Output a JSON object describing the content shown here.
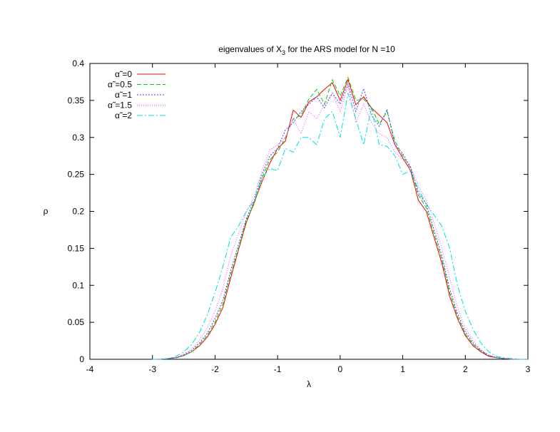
{
  "chart_data": {
    "type": "line",
    "title": {
      "prefix": "eigenvalues of X",
      "sub": "3",
      "suffix": " for the ARS model for N  =10"
    },
    "xlabel": "λ",
    "ylabel": "ρ",
    "xlim": [
      -4,
      3
    ],
    "ylim": [
      0,
      0.4
    ],
    "xticks": [
      -4,
      -3,
      -2,
      -1,
      0,
      1,
      2,
      3
    ],
    "yticks": [
      0,
      0.05,
      0.1,
      0.15,
      0.2,
      0.25,
      0.3,
      0.35,
      0.4
    ],
    "grid": false,
    "legend_position": "top-left",
    "x": [
      -3,
      -2.875,
      -2.75,
      -2.625,
      -2.5,
      -2.375,
      -2.25,
      -2.125,
      -2,
      -1.875,
      -1.75,
      -1.625,
      -1.5,
      -1.375,
      -1.25,
      -1.125,
      -1,
      -0.875,
      -0.75,
      -0.625,
      -0.5,
      -0.375,
      -0.25,
      -0.125,
      0,
      0.125,
      0.25,
      0.375,
      0.5,
      0.625,
      0.75,
      0.875,
      1,
      1.125,
      1.25,
      1.375,
      1.5,
      1.625,
      1.75,
      1.875,
      2,
      2.125,
      2.25,
      2.375,
      2.5,
      2.625,
      2.75,
      2.875,
      3
    ],
    "series": [
      {
        "name": "α̃ =0",
        "color": "#ff0000",
        "dash": "",
        "values": [
          0,
          0,
          0.001,
          0.002,
          0.005,
          0.01,
          0.018,
          0.03,
          0.047,
          0.07,
          0.11,
          0.148,
          0.185,
          0.212,
          0.24,
          0.265,
          0.285,
          0.295,
          0.337,
          0.327,
          0.348,
          0.355,
          0.365,
          0.374,
          0.35,
          0.378,
          0.344,
          0.355,
          0.34,
          0.33,
          0.32,
          0.29,
          0.272,
          0.255,
          0.215,
          0.2,
          0.165,
          0.13,
          0.085,
          0.055,
          0.032,
          0.018,
          0.01,
          0.004,
          0.002,
          0.001,
          0,
          0,
          0
        ]
      },
      {
        "name": "α̃ =0.5",
        "color": "#00cc00",
        "dash": "6,3",
        "values": [
          0,
          0,
          0.001,
          0.002,
          0.005,
          0.01,
          0.02,
          0.032,
          0.05,
          0.075,
          0.115,
          0.15,
          0.188,
          0.21,
          0.245,
          0.27,
          0.28,
          0.3,
          0.325,
          0.33,
          0.352,
          0.365,
          0.345,
          0.378,
          0.356,
          0.381,
          0.35,
          0.352,
          0.34,
          0.318,
          0.335,
          0.295,
          0.275,
          0.258,
          0.222,
          0.205,
          0.17,
          0.135,
          0.09,
          0.058,
          0.034,
          0.02,
          0.011,
          0.005,
          0.002,
          0.001,
          0,
          0,
          0
        ]
      },
      {
        "name": "α̃ =1",
        "color": "#4444ff",
        "dash": "2,2",
        "values": [
          0,
          0,
          0.001,
          0.002,
          0.006,
          0.012,
          0.022,
          0.035,
          0.055,
          0.08,
          0.12,
          0.155,
          0.19,
          0.215,
          0.25,
          0.275,
          0.285,
          0.31,
          0.32,
          0.335,
          0.345,
          0.355,
          0.34,
          0.36,
          0.345,
          0.372,
          0.335,
          0.366,
          0.33,
          0.315,
          0.338,
          0.29,
          0.278,
          0.26,
          0.225,
          0.21,
          0.175,
          0.14,
          0.095,
          0.062,
          0.037,
          0.022,
          0.012,
          0.005,
          0.002,
          0.001,
          0,
          0,
          0
        ]
      },
      {
        "name": "α̃ =1.5",
        "color": "#ff44ff",
        "dash": "1,2",
        "values": [
          0,
          0,
          0.001,
          0.003,
          0.007,
          0.014,
          0.026,
          0.042,
          0.065,
          0.095,
          0.14,
          0.17,
          0.2,
          0.22,
          0.255,
          0.283,
          0.29,
          0.3,
          0.325,
          0.305,
          0.335,
          0.325,
          0.345,
          0.36,
          0.335,
          0.37,
          0.32,
          0.345,
          0.32,
          0.305,
          0.3,
          0.28,
          0.27,
          0.26,
          0.235,
          0.215,
          0.185,
          0.15,
          0.11,
          0.07,
          0.042,
          0.025,
          0.013,
          0.006,
          0.003,
          0.001,
          0,
          0,
          0
        ]
      },
      {
        "name": "α̃ =2",
        "color": "#00dddd",
        "dash": "8,3,2,3",
        "values": [
          0,
          0,
          0.001,
          0.004,
          0.01,
          0.02,
          0.036,
          0.06,
          0.09,
          0.125,
          0.165,
          0.18,
          0.2,
          0.215,
          0.245,
          0.258,
          0.255,
          0.285,
          0.28,
          0.3,
          0.3,
          0.29,
          0.325,
          0.335,
          0.3,
          0.36,
          0.325,
          0.29,
          0.34,
          0.29,
          0.288,
          0.275,
          0.25,
          0.255,
          0.23,
          0.21,
          0.195,
          0.18,
          0.15,
          0.1,
          0.065,
          0.04,
          0.022,
          0.01,
          0.004,
          0.002,
          0.001,
          0,
          0
        ]
      }
    ]
  }
}
